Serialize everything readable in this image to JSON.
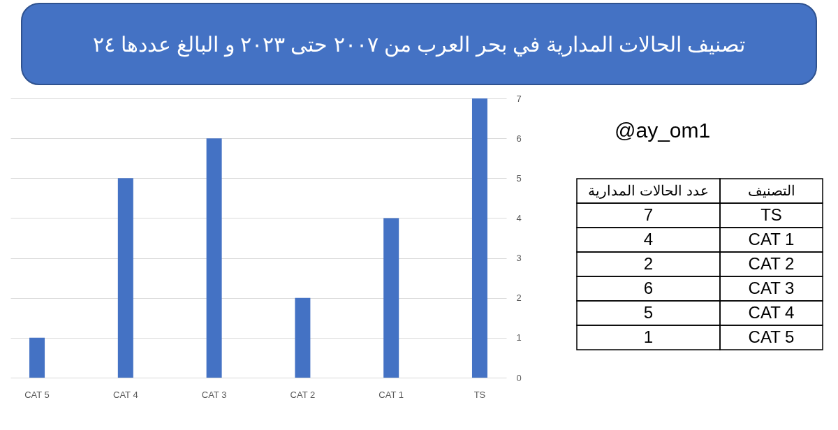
{
  "chart_data": [
    {
      "type": "bar",
      "title": "تصنيف الحالات المدارية في بحر العرب من ٢٠٠٧ حتى ٢٠٢٣ و البالغ عددها ٢٤",
      "categories": [
        "CAT 5",
        "CAT 4",
        "CAT 3",
        "CAT 2",
        "CAT 1",
        "TS"
      ],
      "values": [
        1,
        5,
        6,
        2,
        4,
        7
      ],
      "color": "#4472c4",
      "ylim": [
        0,
        7
      ],
      "yticks": [
        0,
        1,
        2,
        3,
        4,
        5,
        6,
        7
      ],
      "grid": "y",
      "annotations": [
        "@ay_om1"
      ]
    },
    {
      "type": "other",
      "categories": [
        "TS",
        "CAT 1",
        "CAT 2",
        "CAT 3",
        "CAT 4",
        "CAT 5"
      ],
      "value_labels": [
        "7",
        "4",
        "2",
        "6",
        "5",
        "1"
      ],
      "annotations": [
        "عدد الحالات المدارية",
        "التصنيف"
      ]
    }
  ]
}
